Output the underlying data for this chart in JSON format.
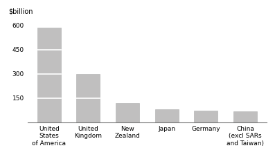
{
  "categories": [
    "United\nStates\nof America",
    "United\nKingdom",
    "New\nZealand",
    "Japan",
    "Germany",
    "China\n(excl SARs\nand Taiwan)"
  ],
  "values": [
    585,
    300,
    120,
    82,
    72,
    67
  ],
  "bar_color": "#c0bfbf",
  "bar_edge_color": "#aaaaaa",
  "segment_lines": [
    150,
    300,
    450
  ],
  "ylabel": "$billion",
  "ylim": [
    0,
    640
  ],
  "yticks": [
    0,
    150,
    300,
    450,
    600
  ],
  "background_color": "#ffffff",
  "bar_width": 0.6,
  "tick_fontsize": 6.5,
  "ylabel_fontsize": 7,
  "xlabel_fontsize": 6.5
}
